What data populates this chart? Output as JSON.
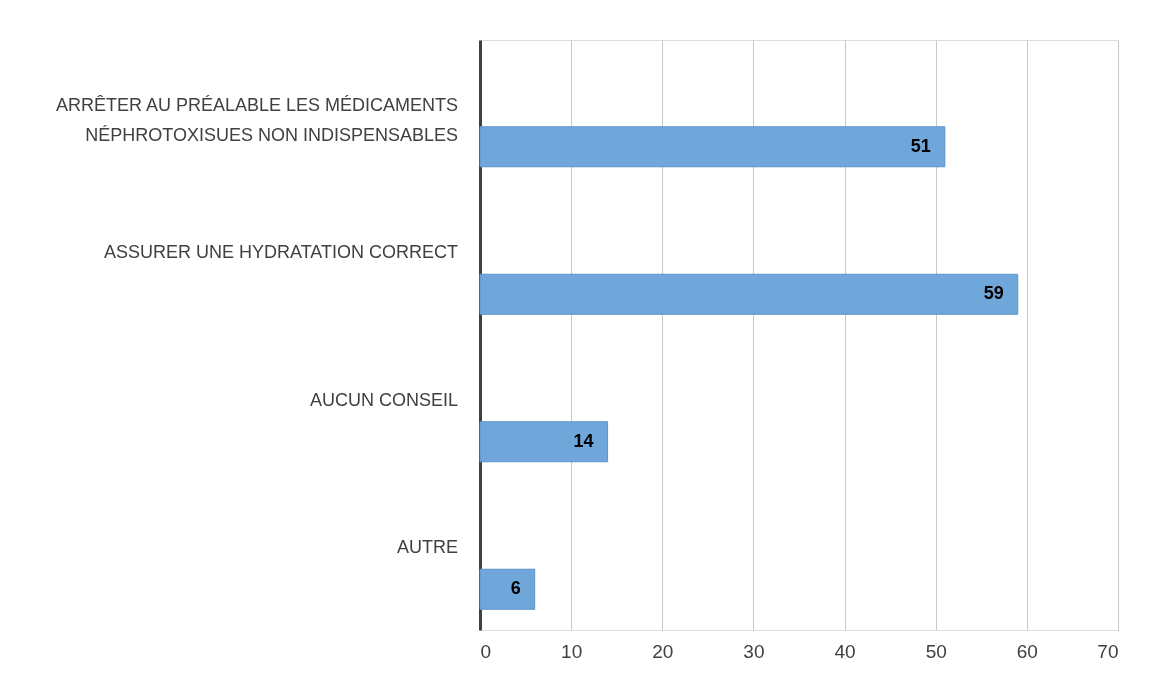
{
  "chart_data": {
    "type": "bar",
    "orientation": "horizontal",
    "categories": [
      "ARRÊTER AU PRÉALABLE LES MÉDICAMENTS NÉPHROTOXISUES NON INDISPENSABLES",
      "ASSURER UNE HYDRATATION CORRECT",
      "AUCUN CONSEIL",
      "AUTRE"
    ],
    "values": [
      51,
      59,
      14,
      6
    ],
    "color": "#70a7db",
    "xlim": [
      0,
      70
    ],
    "xticks": [
      0,
      10,
      20,
      30,
      40,
      50,
      60,
      70
    ],
    "grid": "x",
    "data_labels": true
  }
}
